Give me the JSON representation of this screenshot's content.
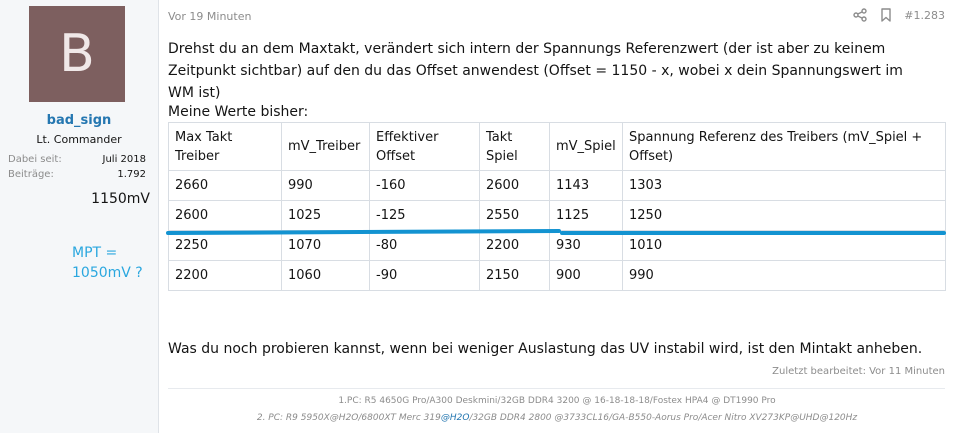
{
  "user": {
    "avatar_letter": "B",
    "avatar_color": "#7d5f5f",
    "name": "bad_sign",
    "title": "Lt. Commander",
    "joined_label": "Dabei seit:",
    "joined_value": "Juli 2018",
    "posts_label": "Beiträge:",
    "posts_value": "1.792",
    "annotation_value": "1150mV",
    "annotation_mpt_line1": "MPT =",
    "annotation_mpt_line2": "1050mV ?"
  },
  "post": {
    "time": "Vor 19 Minuten",
    "number": "#1.283",
    "intro": "Drehst du an dem Maxtakt, verändert sich intern der Spannungs Referenzwert (der ist aber zu keinem Zeitpunkt sichtbar) auf den du das Offset anwendest (Offset = 1150 - x, wobei x dein Spannungswert im WM ist)",
    "table_caption": "Meine Werte bisher:",
    "table": {
      "headers": [
        "Max Takt Treiber",
        "mV_Treiber",
        "Effektiver Offset",
        "Takt Spiel",
        "mV_Spiel",
        "Spannung Referenz des Treibers (mV_Spiel + Offset)"
      ],
      "rows": [
        [
          "2660",
          "990",
          "-160",
          "2600",
          "1143",
          "1303"
        ],
        [
          "2600",
          "1025",
          "-125",
          "2550",
          "1125",
          "1250"
        ],
        [
          "2250",
          "1070",
          "-80",
          "2200",
          "930",
          "1010"
        ],
        [
          "2200",
          "1060",
          "-90",
          "2150",
          "900",
          "990"
        ]
      ]
    },
    "outro": "Was du noch probieren kannst, wenn bei weniger Auslastung das UV instabil wird, ist den Mintakt anheben.",
    "edited": "Zuletzt bearbeitet: Vor 11 Minuten",
    "signature_line1": "1.PC: R5 4650G Pro/A300 Deskmini/32GB DDR4 3200 @ 16-18-18-18/Fostex HPA4 @ DT1990 Pro",
    "signature_line2_a": "2. PC: R9 5950X@H2O/6800XT Merc 319",
    "signature_line2_link": "@H2O",
    "signature_line2_b": "/32GB DDR4 2800 @3733CL16/GA-B550-Aorus Pro/Acer Nitro XV273KP@UHD@120Hz"
  },
  "colors": {
    "username": "#2577b1",
    "annotation_blue": "#2aa7df",
    "highlight_line": "#1393d1"
  },
  "icons": [
    "share-icon",
    "bookmark-icon"
  ]
}
